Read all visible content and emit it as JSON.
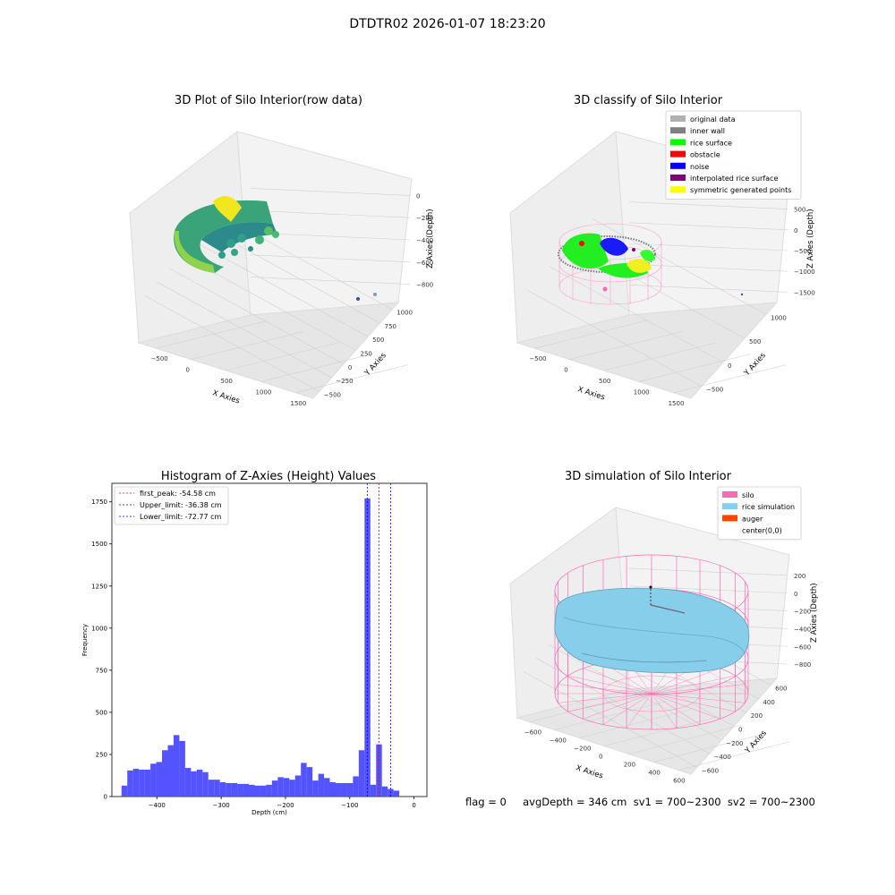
{
  "figure_title": "DTDTR02 2026-01-07 18:23:20",
  "footer": "flag = 0     avgDepth = 346 cm  sv1 = 700~2300  sv2 = 700~2300",
  "colors": {
    "grid": "#d9d9d9",
    "pane": "#f2f2f2",
    "hist": "#4a4aff",
    "silo": "#ff69b4",
    "rice_sim": "#87ceeb",
    "auger": "#ff4500",
    "peak_line": "#ff0000",
    "limit_line": "#0000ff"
  },
  "chart_data": [
    {
      "type": "scatter",
      "title": "3D Plot of Silo Interior(row data)",
      "xlabel": "X Axies",
      "ylabel": "Y Axies",
      "zlabel": "Z Axies (Depth)",
      "x_ticks": [
        "−500",
        "0",
        "500",
        "1000",
        "1500"
      ],
      "y_ticks": [
        "−500",
        "−250",
        "0",
        "250",
        "500",
        "750",
        "1000"
      ],
      "z_ticks": [
        "0",
        "−200",
        "−400",
        "−600",
        "−800"
      ],
      "xlim": [
        -600,
        1800
      ],
      "ylim": [
        -600,
        1100
      ],
      "zlim": [
        -900,
        0
      ]
    },
    {
      "type": "scatter",
      "title": "3D classify of Silo Interior",
      "xlabel": "X Axies",
      "ylabel": "Y Axies",
      "zlabel": "Z Axies (Depth)",
      "x_ticks": [
        "−500",
        "0",
        "500",
        "1000",
        "1500"
      ],
      "y_ticks": [
        "−500",
        "0",
        "500",
        "1000"
      ],
      "z_ticks": [
        "500",
        "0",
        "−500",
        "−1000",
        "−1500"
      ],
      "legend_position": "top-right",
      "legend": [
        {
          "label": "original data",
          "color": "#b0b0b0"
        },
        {
          "label": "inner wall",
          "color": "#808080"
        },
        {
          "label": "rice surface",
          "color": "#00ff00"
        },
        {
          "label": "obstacle",
          "color": "#ff0000"
        },
        {
          "label": "noise",
          "color": "#0000ff"
        },
        {
          "label": "interpolated rice surface",
          "color": "#800080"
        },
        {
          "label": "symmetric generated points",
          "color": "#ffff00"
        }
      ]
    },
    {
      "type": "bar",
      "title": "Histogram of Z-Axies (Height) Values",
      "xlabel": "Depth (cm)",
      "ylabel": "Frequency",
      "xlim": [
        -470,
        20
      ],
      "ylim": [
        0,
        1860
      ],
      "x_ticks": [
        -400,
        -300,
        -200,
        -100,
        0
      ],
      "y_ticks": [
        0,
        250,
        500,
        750,
        1000,
        1250,
        1500,
        1750
      ],
      "bin_start": -455,
      "bin_width": 9,
      "values": [
        65,
        155,
        165,
        160,
        160,
        195,
        205,
        275,
        305,
        365,
        330,
        170,
        150,
        160,
        145,
        100,
        100,
        85,
        80,
        80,
        75,
        75,
        70,
        65,
        65,
        70,
        95,
        115,
        110,
        100,
        125,
        200,
        175,
        95,
        135,
        110,
        85,
        80,
        80,
        80,
        120,
        275,
        1770,
        70,
        310,
        60,
        45,
        35
      ],
      "legend_position": "top-left",
      "lines": [
        {
          "label": "first_peak: -54.58 cm",
          "x": -54.58,
          "color": "#ff0000"
        },
        {
          "label": "Upper_limit: -36.38 cm",
          "x": -36.38,
          "color": "#0000ff"
        },
        {
          "label": "Lower_limit: -72.77 cm",
          "x": -72.77,
          "color": "#0000ff"
        }
      ]
    },
    {
      "type": "scatter",
      "title": "3D simulation of Silo Interior",
      "xlabel": "X Axies",
      "ylabel": "Y Axies",
      "zlabel": "Z Axies (Depth)",
      "x_ticks": [
        "−600",
        "−400",
        "−200",
        "0",
        "200",
        "400",
        "600"
      ],
      "y_ticks": [
        "−600",
        "−400",
        "−200",
        "0",
        "200",
        "400",
        "600"
      ],
      "z_ticks": [
        "200",
        "0",
        "−200",
        "−400",
        "−600",
        "−800"
      ],
      "legend_position": "top-right",
      "legend": [
        {
          "label": "silo",
          "color": "#ff69b4"
        },
        {
          "label": "rice simulation",
          "color": "#87ceeb"
        },
        {
          "label": "auger",
          "color": "#ff4500"
        },
        {
          "label": "center(0,0)",
          "color": "#ffffff"
        }
      ]
    }
  ]
}
